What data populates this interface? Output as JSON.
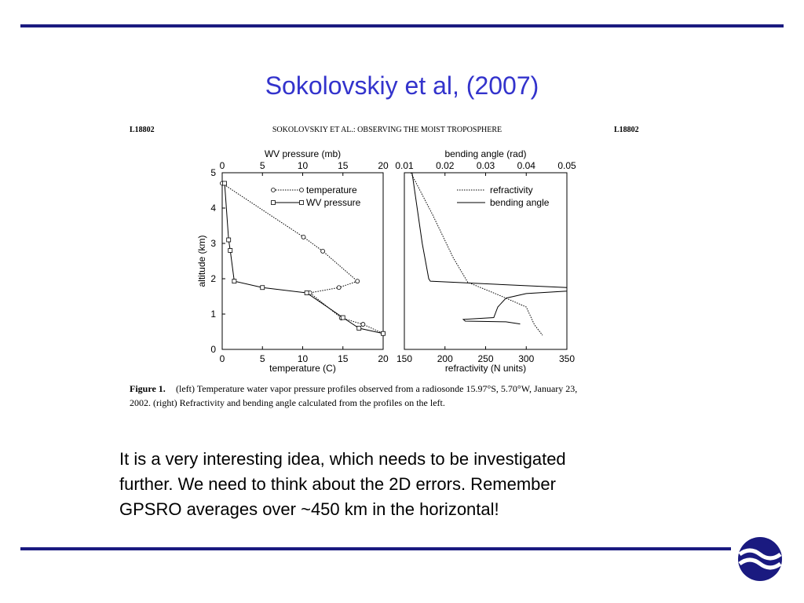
{
  "slide": {
    "title": "Sokolovskiy et al, (2007)",
    "body_lines": [
      "It is a very interesting idea, which needs to be investigated",
      "further. We need to think about the 2D errors.  Remember",
      "GPSRO averages over ~450 km in the horizontal!"
    ]
  },
  "figure": {
    "header_left": "L18802",
    "header_center": "SOKOLOVSKIY ET AL.: OBSERVING THE MOIST TROPOSPHERE",
    "header_right": "L18802",
    "caption_label": "Figure 1.",
    "caption_lines": [
      "(left) Temperature water vapor pressure profiles observed from a radiosonde 15.97°S, 5.70°W, January 23,",
      "2002. (right) Refractivity and bending angle calculated from the profiles on the left."
    ]
  },
  "chart_data": [
    {
      "type": "line",
      "xlabel": "temperature (C)",
      "x2label": "WV pressure (mb)",
      "ylabel": "altitude (km)",
      "xlim": [
        0,
        20
      ],
      "xticks": [
        0,
        5,
        10,
        15,
        20
      ],
      "x2lim": [
        0,
        20
      ],
      "x2ticks": [
        0,
        5,
        10,
        15,
        20
      ],
      "ylim": [
        0,
        5
      ],
      "yticks": [
        0,
        1,
        2,
        3,
        4,
        5
      ],
      "legend": "upper right",
      "series": [
        {
          "name": "temperature",
          "color": "#000000",
          "axis": "x",
          "dash": "dotted",
          "marker": "circle",
          "x": [
            0,
            10.1,
            12.5,
            16.8,
            14.5,
            10.9,
            14.8,
            17.5,
            20
          ],
          "y": [
            4.7,
            3.18,
            2.78,
            1.93,
            1.75,
            1.6,
            0.89,
            0.71,
            0.45
          ]
        },
        {
          "name": "WV pressure",
          "color": "#000000",
          "axis": "x2",
          "dash": "solid",
          "marker": "square",
          "x": [
            0.3,
            0.8,
            1,
            1.5,
            5,
            10.5,
            15,
            17,
            20
          ],
          "y": [
            4.7,
            3.1,
            2.8,
            1.93,
            1.75,
            1.6,
            0.9,
            0.6,
            0.45
          ]
        }
      ]
    },
    {
      "type": "line",
      "xlabel": "refractivity (N units)",
      "x2label": "bending angle (rad)",
      "xlim": [
        150,
        350
      ],
      "xticks": [
        150,
        200,
        250,
        300,
        350
      ],
      "x2lim": [
        0.01,
        0.05
      ],
      "x2ticks": [
        0.01,
        0.02,
        0.03,
        0.04,
        0.05
      ],
      "ylim": [
        0,
        5
      ],
      "legend": "upper right",
      "series": [
        {
          "name": "refractivity",
          "color": "#000000",
          "axis": "x",
          "dash": "dotted",
          "x": [
            158,
            185,
            210,
            228,
            265,
            300,
            310,
            320
          ],
          "y": [
            5,
            3.8,
            2.6,
            1.9,
            1.55,
            1.2,
            0.7,
            0.4
          ]
        },
        {
          "name": "bending angle",
          "color": "#000000",
          "axis": "x2",
          "dash": "solid",
          "x": [
            0.0119,
            0.0144,
            0.016,
            0.0164,
            0.05,
            0.05,
            0.04,
            0.035,
            0.033,
            0.032,
            0.0245,
            0.025,
            0.035,
            0.0385
          ],
          "y": [
            5,
            3,
            2,
            1.93,
            1.75,
            1.65,
            1.58,
            1.45,
            1.2,
            0.9,
            0.85,
            0.8,
            0.78,
            0.72
          ]
        }
      ]
    }
  ]
}
